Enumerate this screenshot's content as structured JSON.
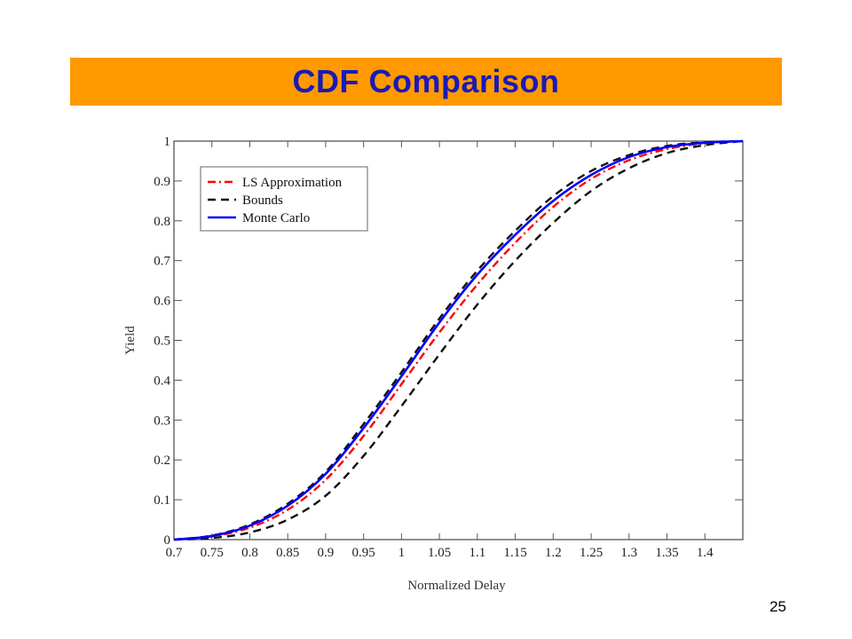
{
  "slide": {
    "title": "CDF Comparison",
    "page_number": "25"
  },
  "colors": {
    "title_bar": "#ff9900",
    "title_text": "#1a1ab8",
    "ls_approximation": "#ff0000",
    "bounds": "#111111",
    "monte_carlo": "#0000ff"
  },
  "chart_data": {
    "type": "line",
    "title": "",
    "xlabel": "Normalized Delay",
    "ylabel": "Yield",
    "xlim": [
      0.7,
      1.45
    ],
    "ylim": [
      0,
      1
    ],
    "x_ticks": [
      0.7,
      0.75,
      0.8,
      0.85,
      0.9,
      0.95,
      1,
      1.05,
      1.1,
      1.15,
      1.2,
      1.25,
      1.3,
      1.35,
      1.4
    ],
    "x_tick_labels": [
      "0.7",
      "0.75",
      "0.8",
      "0.85",
      "0.9",
      "0.95",
      "1",
      "1.05",
      "1.1",
      "1.15",
      "1.2",
      "1.25",
      "1.3",
      "1.35",
      "1.4"
    ],
    "y_ticks": [
      0,
      0.1,
      0.2,
      0.3,
      0.4,
      0.5,
      0.6,
      0.7,
      0.8,
      0.9,
      1
    ],
    "y_tick_labels": [
      "0",
      "0.1",
      "0.2",
      "0.3",
      "0.4",
      "0.5",
      "0.6",
      "0.7",
      "0.8",
      "0.9",
      "1"
    ],
    "grid": false,
    "legend_position": "top-left",
    "legend": [
      {
        "label": "LS Approximation",
        "style": "dashdot",
        "color": "#ff0000"
      },
      {
        "label": "Bounds",
        "style": "dashed",
        "color": "#111111"
      },
      {
        "label": "Monte Carlo",
        "style": "solid",
        "color": "#0000ff"
      }
    ],
    "series": [
      {
        "name": "LS Approximation",
        "style": "dashdot",
        "color": "#ff0000",
        "x": [
          0.7,
          0.75,
          0.8,
          0.85,
          0.9,
          0.95,
          1.0,
          1.05,
          1.1,
          1.15,
          1.2,
          1.25,
          1.3,
          1.35,
          1.4,
          1.45
        ],
        "y": [
          0.0,
          0.008,
          0.03,
          0.075,
          0.15,
          0.26,
          0.39,
          0.52,
          0.64,
          0.745,
          0.835,
          0.905,
          0.952,
          0.98,
          0.995,
          1.0
        ]
      },
      {
        "name": "Bounds",
        "style": "dashed",
        "color": "#111111",
        "x": [
          0.7,
          0.75,
          0.8,
          0.85,
          0.9,
          0.95,
          1.0,
          1.05,
          1.1,
          1.15,
          1.2,
          1.25,
          1.3,
          1.35,
          1.4,
          1.45
        ],
        "y": [
          0.0,
          0.01,
          0.038,
          0.09,
          0.17,
          0.29,
          0.42,
          0.555,
          0.675,
          0.775,
          0.862,
          0.925,
          0.965,
          0.988,
          0.997,
          1.0
        ]
      },
      {
        "name": "Bounds",
        "style": "dashed",
        "color": "#111111",
        "x": [
          0.7,
          0.75,
          0.8,
          0.85,
          0.9,
          0.95,
          1.0,
          1.05,
          1.1,
          1.15,
          1.2,
          1.25,
          1.3,
          1.35,
          1.4,
          1.45
        ],
        "y": [
          0.0,
          0.004,
          0.018,
          0.05,
          0.11,
          0.21,
          0.335,
          0.465,
          0.59,
          0.7,
          0.795,
          0.875,
          0.932,
          0.97,
          0.99,
          1.0
        ]
      },
      {
        "name": "Monte Carlo",
        "style": "solid",
        "color": "#0000ff",
        "x": [
          0.7,
          0.75,
          0.8,
          0.85,
          0.9,
          0.95,
          1.0,
          1.05,
          1.1,
          1.15,
          1.2,
          1.25,
          1.3,
          1.35,
          1.4,
          1.45
        ],
        "y": [
          0.0,
          0.009,
          0.035,
          0.085,
          0.165,
          0.28,
          0.41,
          0.545,
          0.665,
          0.765,
          0.85,
          0.915,
          0.96,
          0.985,
          0.996,
          1.0
        ]
      }
    ]
  }
}
